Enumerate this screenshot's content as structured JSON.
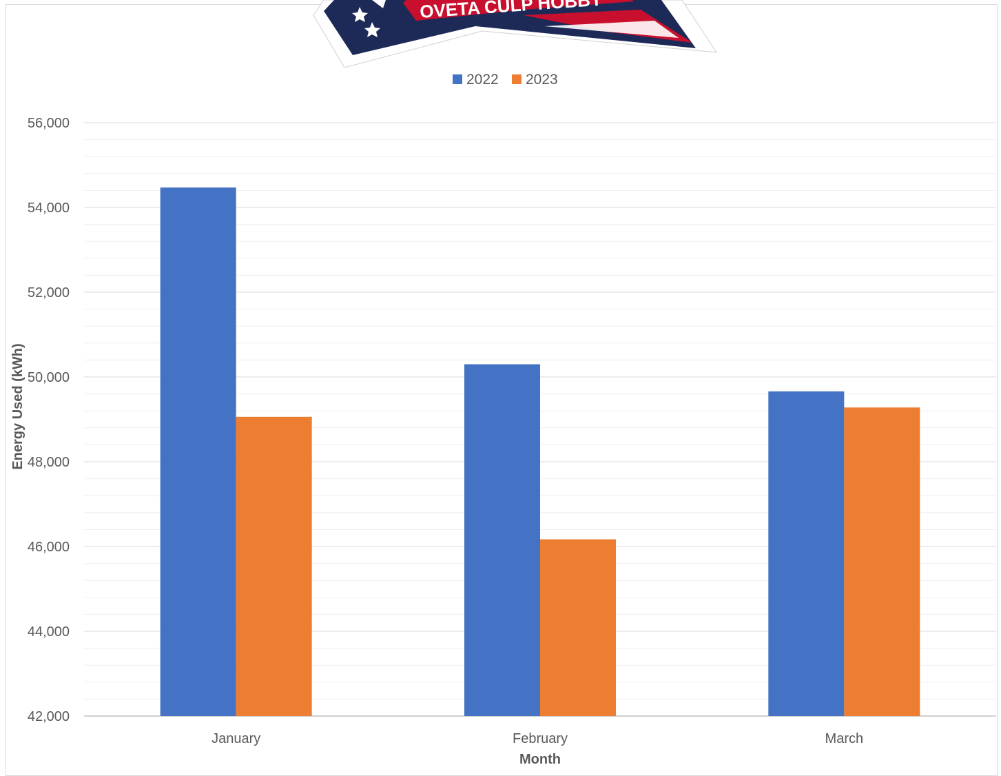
{
  "chart_data": {
    "type": "bar",
    "title": "",
    "xlabel": "Month",
    "ylabel": "Energy Used (kWh)",
    "categories": [
      "January",
      "February",
      "March"
    ],
    "series": [
      {
        "name": "2022",
        "color": "#4472c4",
        "values": [
          54470,
          50300,
          49660
        ]
      },
      {
        "name": "2023",
        "color": "#ed7d31",
        "values": [
          49060,
          46170,
          49280
        ]
      }
    ],
    "ylim": [
      42000,
      56000
    ],
    "yticks": [
      42000,
      44000,
      46000,
      48000,
      50000,
      52000,
      54000,
      56000
    ],
    "ytick_labels": [
      "42,000",
      "44,000",
      "46,000",
      "48,000",
      "50,000",
      "52,000",
      "54,000",
      "56,000"
    ],
    "major_grid": true,
    "minor_grid_step": 400,
    "legend_position": "top-center",
    "logo": {
      "text": "OVETA CULP HOBBY",
      "colors": {
        "navy": "#1d2a57",
        "red": "#c8102e",
        "white": "#ffffff"
      }
    }
  }
}
